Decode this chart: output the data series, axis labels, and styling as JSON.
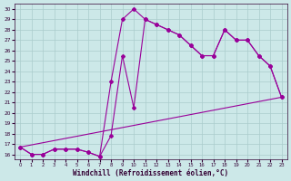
{
  "xlabel": "Windchill (Refroidissement éolien,°C)",
  "bg_color": "#cce8e8",
  "line_color": "#990099",
  "grid_color": "#aacccc",
  "curve1_x": [
    0,
    1,
    2,
    3,
    4,
    5,
    6,
    7,
    8,
    9,
    10,
    11,
    12,
    13,
    14,
    15,
    16,
    17,
    18,
    19,
    20,
    21,
    22,
    23
  ],
  "curve1_y": [
    16.7,
    16.0,
    16.0,
    16.5,
    16.5,
    16.5,
    16.2,
    15.8,
    23.0,
    29.0,
    30.0,
    29.0,
    28.5,
    28.0,
    27.5,
    26.5,
    25.5,
    25.5,
    28.0,
    27.0,
    27.0,
    25.5,
    24.5,
    21.5
  ],
  "curve2_x": [
    0,
    1,
    2,
    3,
    4,
    5,
    6,
    7,
    8,
    9,
    10,
    11,
    12,
    13,
    14,
    15,
    16,
    17,
    18,
    19,
    20,
    21,
    22,
    23
  ],
  "curve2_y": [
    16.7,
    16.0,
    16.0,
    16.5,
    16.5,
    16.5,
    16.2,
    15.8,
    17.8,
    25.5,
    20.5,
    29.0,
    28.5,
    28.0,
    27.5,
    26.5,
    25.5,
    25.5,
    28.0,
    27.0,
    27.0,
    25.5,
    24.5,
    21.5
  ],
  "curve3_x": [
    0,
    23
  ],
  "curve3_y": [
    16.7,
    21.5
  ],
  "ylim": [
    15.5,
    30.5
  ],
  "xlim": [
    -0.5,
    23.5
  ],
  "yticks": [
    16,
    17,
    18,
    19,
    20,
    21,
    22,
    23,
    24,
    25,
    26,
    27,
    28,
    29,
    30
  ],
  "xticks": [
    0,
    1,
    2,
    3,
    4,
    5,
    6,
    7,
    8,
    9,
    10,
    11,
    12,
    13,
    14,
    15,
    16,
    17,
    18,
    19,
    20,
    21,
    22,
    23
  ]
}
